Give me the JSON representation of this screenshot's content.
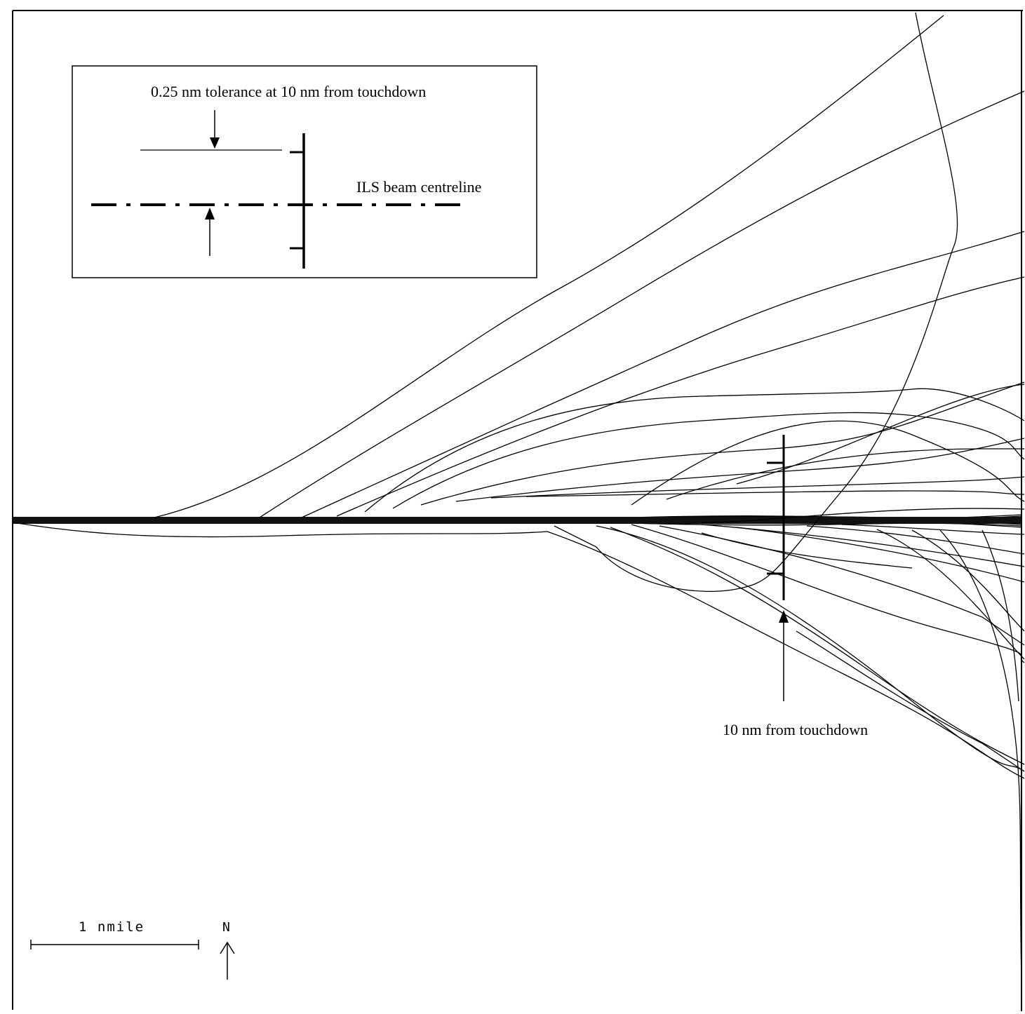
{
  "legend": {
    "tolerance_label": "0.25 nm tolerance at 10 nm from touchdown",
    "centreline_label": "ILS beam centreline"
  },
  "annotation": {
    "checkpoint_label": "10 nm from touchdown"
  },
  "scale_bar": {
    "label": "1 nmile"
  },
  "north_arrow": {
    "label": "N"
  }
}
